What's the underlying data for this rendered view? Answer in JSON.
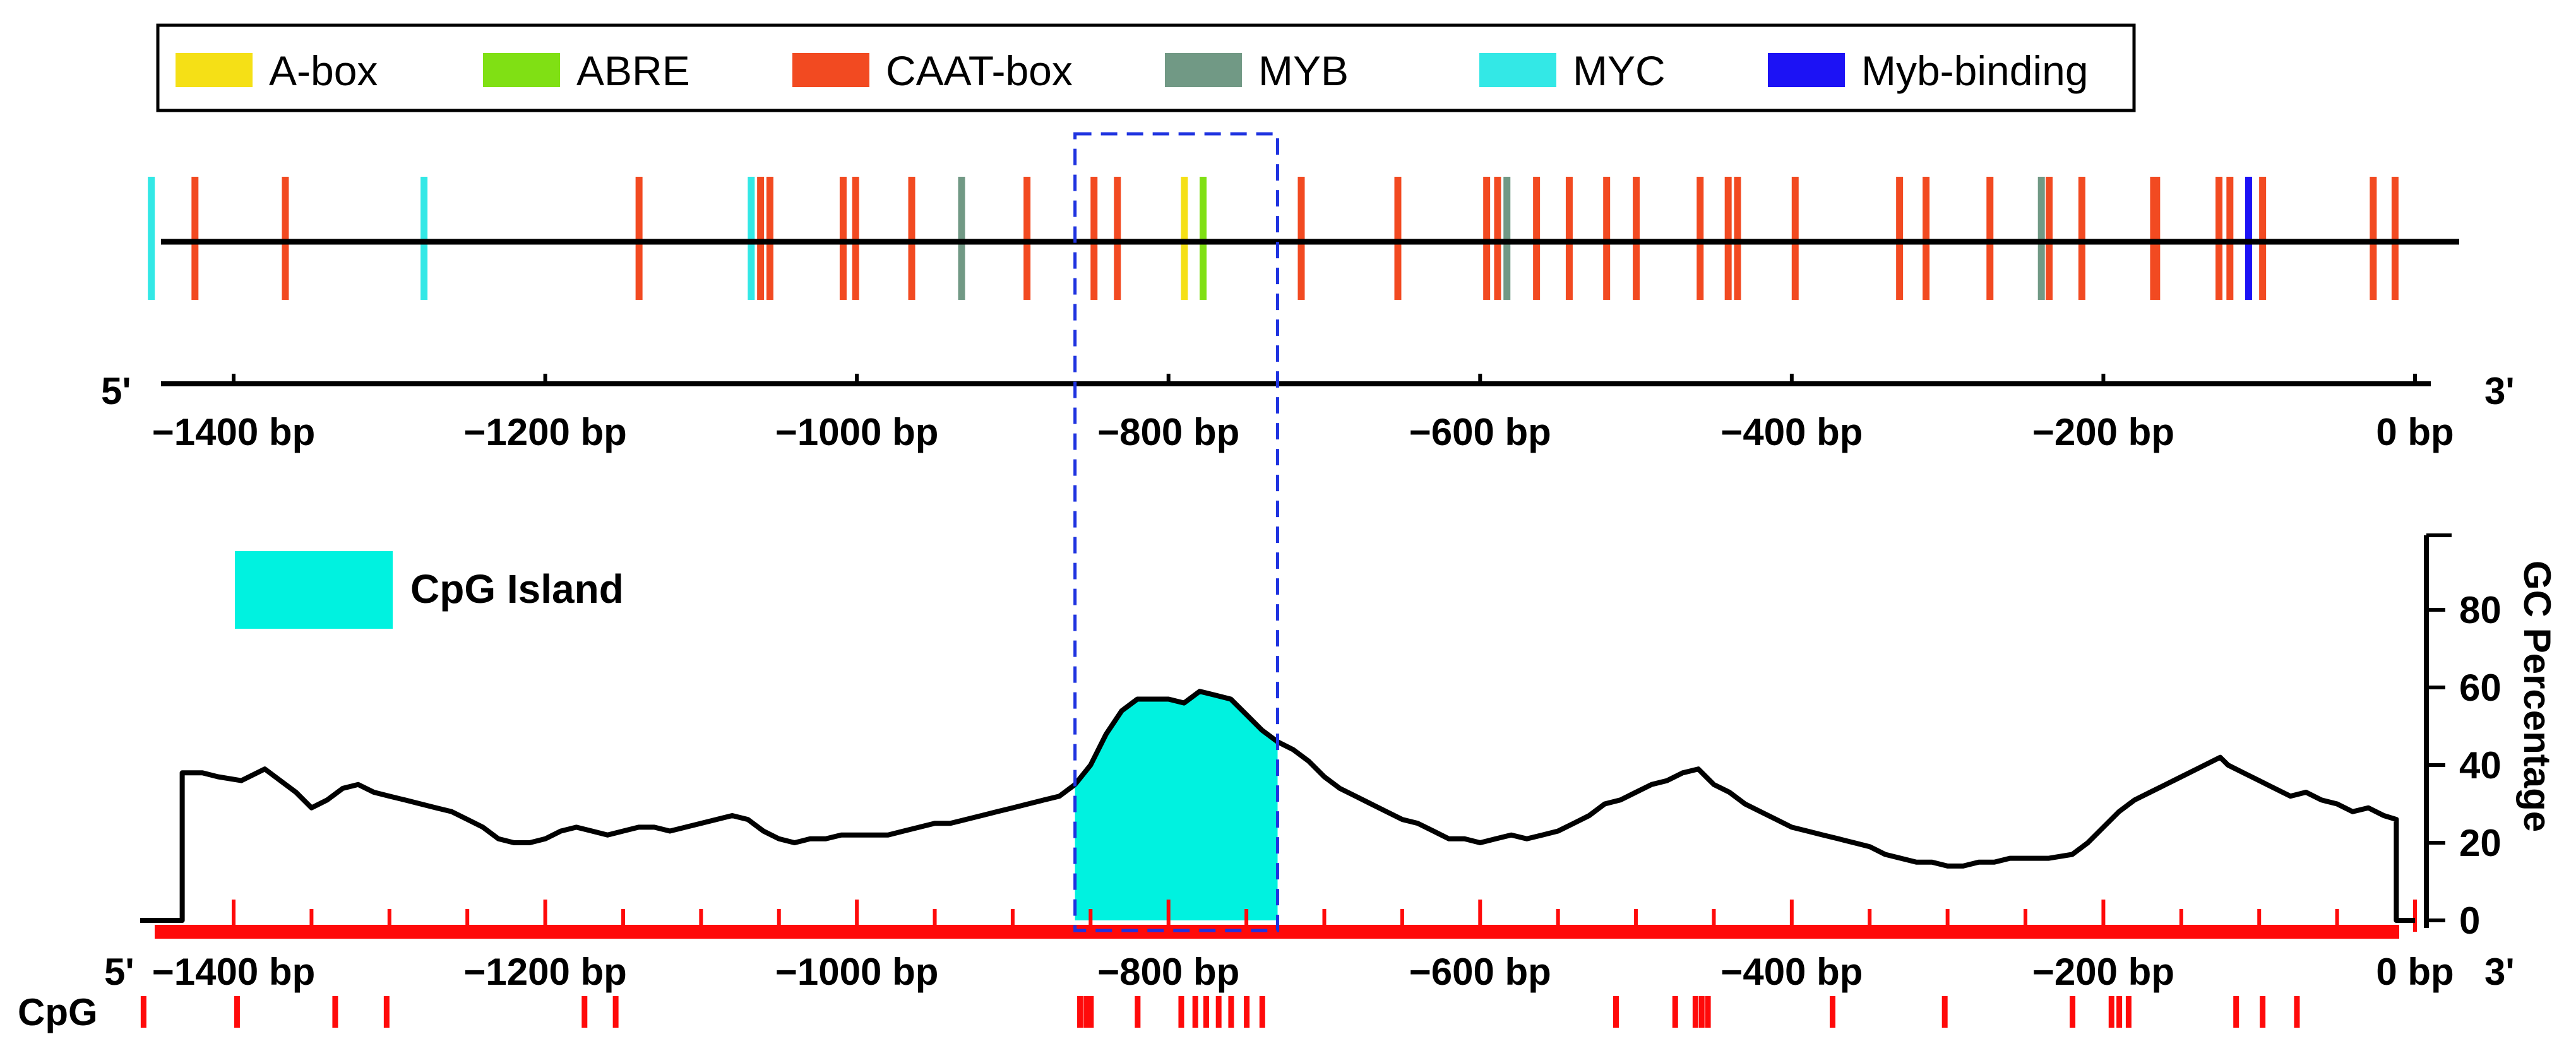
{
  "chart_data": [
    {
      "type": "motif-map",
      "title": "",
      "legend": [
        {
          "key": "A-box",
          "label": "A-box",
          "color": "#f5e016"
        },
        {
          "key": "ABRE",
          "label": "ABRE",
          "color": "#80e014"
        },
        {
          "key": "CAAT-box",
          "label": "CAAT-box",
          "color": "#f24a21"
        },
        {
          "key": "MYB",
          "label": "MYB",
          "color": "#719985"
        },
        {
          "key": "MYC",
          "label": "MYC",
          "color": "#33e8e6"
        },
        {
          "key": "Myb-binding",
          "label": "Myb-binding",
          "color": "#1c12f5"
        }
      ],
      "x_range": [
        -1460,
        0
      ],
      "xlabel": "",
      "ticks": [
        -1400,
        -1200,
        -1000,
        -800,
        -600,
        -400,
        -200,
        0
      ],
      "tick_labels": [
        "−1400 bp",
        "−1200 bp",
        "−1000 bp",
        "−800 bp",
        "−600 bp",
        "−400 bp",
        "−200 bp",
        "0 bp"
      ],
      "label_5prime": "5'",
      "label_3prime": "3'",
      "motifs": [
        {
          "type": "MYC",
          "pos": -1453
        },
        {
          "type": "CAAT-box",
          "pos": -1425
        },
        {
          "type": "CAAT-box",
          "pos": -1367
        },
        {
          "type": "MYC",
          "pos": -1278
        },
        {
          "type": "CAAT-box",
          "pos": -1140
        },
        {
          "type": "MYC",
          "pos": -1068
        },
        {
          "type": "CAAT-box",
          "pos": -1062
        },
        {
          "type": "CAAT-box",
          "pos": -1056
        },
        {
          "type": "CAAT-box",
          "pos": -1009
        },
        {
          "type": "CAAT-box",
          "pos": -1001
        },
        {
          "type": "CAAT-box",
          "pos": -965
        },
        {
          "type": "MYB",
          "pos": -933
        },
        {
          "type": "CAAT-box",
          "pos": -891
        },
        {
          "type": "CAAT-box",
          "pos": -848
        },
        {
          "type": "CAAT-box",
          "pos": -833
        },
        {
          "type": "A-box",
          "pos": -790
        },
        {
          "type": "ABRE",
          "pos": -778
        },
        {
          "type": "CAAT-box",
          "pos": -715
        },
        {
          "type": "CAAT-box",
          "pos": -653
        },
        {
          "type": "CAAT-box",
          "pos": -596
        },
        {
          "type": "CAAT-box",
          "pos": -589
        },
        {
          "type": "MYB",
          "pos": -583
        },
        {
          "type": "CAAT-box",
          "pos": -564
        },
        {
          "type": "CAAT-box",
          "pos": -543
        },
        {
          "type": "CAAT-box",
          "pos": -519
        },
        {
          "type": "CAAT-box",
          "pos": -500
        },
        {
          "type": "CAAT-box",
          "pos": -459
        },
        {
          "type": "CAAT-box",
          "pos": -441
        },
        {
          "type": "CAAT-box",
          "pos": -435
        },
        {
          "type": "CAAT-box",
          "pos": -398
        },
        {
          "type": "CAAT-box",
          "pos": -331
        },
        {
          "type": "CAAT-box",
          "pos": -314
        },
        {
          "type": "CAAT-box",
          "pos": -273
        },
        {
          "type": "MYB",
          "pos": -240
        },
        {
          "type": "CAAT-box",
          "pos": -235
        },
        {
          "type": "CAAT-box",
          "pos": -214
        },
        {
          "type": "CAAT-box",
          "pos": -168
        },
        {
          "type": "CAAT-box",
          "pos": -166
        },
        {
          "type": "CAAT-box",
          "pos": -126
        },
        {
          "type": "CAAT-box",
          "pos": -119
        },
        {
          "type": "Myb-binding",
          "pos": -107
        },
        {
          "type": "CAAT-box",
          "pos": -98
        },
        {
          "type": "CAAT-box",
          "pos": -27
        },
        {
          "type": "CAAT-box",
          "pos": -13
        }
      ]
    },
    {
      "type": "line",
      "title": "",
      "series_name": "GC Percentage",
      "ylabel": "GC Percentage",
      "ylim": [
        0,
        100
      ],
      "yticks": [
        0,
        20,
        40,
        60,
        80
      ],
      "xlim": [
        -1460,
        0
      ],
      "ticks": [
        -1400,
        -1200,
        -1000,
        -800,
        -600,
        -400,
        -200,
        0
      ],
      "tick_labels": [
        "−1400 bp",
        "−1200 bp",
        "−1000 bp",
        "−800 bp",
        "−600 bp",
        "−400 bp",
        "−200 bp",
        "0 bp"
      ],
      "label_5prime": "5'",
      "label_3prime": "3'",
      "x": [
        -1460,
        -1433,
        -1433,
        -1420,
        -1410,
        -1395,
        -1380,
        -1370,
        -1360,
        -1350,
        -1340,
        -1330,
        -1320,
        -1310,
        -1300,
        -1290,
        -1280,
        -1270,
        -1260,
        -1250,
        -1240,
        -1230,
        -1220,
        -1210,
        -1200,
        -1190,
        -1180,
        -1170,
        -1160,
        -1150,
        -1140,
        -1130,
        -1120,
        -1110,
        -1100,
        -1090,
        -1080,
        -1070,
        -1060,
        -1050,
        -1040,
        -1030,
        -1020,
        -1010,
        -1000,
        -990,
        -980,
        -970,
        -960,
        -950,
        -940,
        -930,
        -920,
        -910,
        -900,
        -890,
        -880,
        -870,
        -860,
        -850,
        -840,
        -830,
        -820,
        -810,
        -800,
        -790,
        -780,
        -770,
        -760,
        -750,
        -740,
        -730,
        -720,
        -710,
        -700,
        -690,
        -680,
        -670,
        -660,
        -650,
        -640,
        -630,
        -620,
        -610,
        -600,
        -590,
        -580,
        -570,
        -560,
        -550,
        -540,
        -530,
        -520,
        -510,
        -500,
        -490,
        -480,
        -470,
        -460,
        -455,
        -450,
        -440,
        -430,
        -420,
        -410,
        -400,
        -390,
        -380,
        -370,
        -360,
        -350,
        -340,
        -330,
        -320,
        -310,
        -300,
        -290,
        -280,
        -270,
        -260,
        -250,
        -240,
        -235,
        -220,
        -210,
        -200,
        -190,
        -180,
        -170,
        -160,
        -150,
        -140,
        -130,
        -125,
        -120,
        -110,
        -100,
        -95,
        -90,
        -80,
        -70,
        -60,
        -50,
        -40,
        -30,
        -20,
        -12,
        -12,
        0
      ],
      "values": [
        0,
        0,
        38,
        38,
        37,
        36,
        39,
        36,
        33,
        29,
        31,
        34,
        35,
        33,
        32,
        31,
        30,
        29,
        28,
        26,
        24,
        21,
        20,
        20,
        21,
        23,
        24,
        23,
        22,
        23,
        24,
        24,
        23,
        24,
        25,
        26,
        27,
        26,
        23,
        21,
        20,
        21,
        21,
        22,
        22,
        22,
        22,
        23,
        24,
        25,
        25,
        26,
        27,
        28,
        29,
        30,
        31,
        32,
        35,
        40,
        48,
        54,
        57,
        57,
        57,
        56,
        59,
        58,
        57,
        53,
        49,
        46,
        44,
        41,
        37,
        34,
        32,
        30,
        28,
        26,
        25,
        23,
        21,
        21,
        20,
        21,
        22,
        21,
        22,
        23,
        25,
        27,
        30,
        31,
        33,
        35,
        36,
        38,
        39,
        37,
        35,
        33,
        30,
        28,
        26,
        24,
        23,
        22,
        21,
        20,
        19,
        17,
        16,
        15,
        15,
        14,
        14,
        15,
        15,
        16,
        16,
        16,
        16,
        17,
        20,
        24,
        28,
        31,
        33,
        35,
        37,
        39,
        41,
        42,
        40,
        38,
        36,
        35,
        34,
        32,
        33,
        31,
        30,
        28,
        29,
        27,
        26,
        0,
        0
      ],
      "cpg_island": {
        "label": "CpG Island",
        "start": -860,
        "end": -730,
        "color": "#00f2e0"
      },
      "highlight_region": {
        "start": -860,
        "end": -730,
        "style": "dashed",
        "color": "#1f33e0"
      },
      "cpg_track_label": "CpG",
      "cpg_positions": [
        -1458,
        -1398,
        -1335,
        -1302,
        -1175,
        -1155,
        -857,
        -853,
        -850,
        -820,
        -792,
        -783,
        -776,
        -768,
        -760,
        -750,
        -740,
        -513,
        -475,
        -462,
        -458,
        -454,
        -374,
        -302,
        -220,
        -195,
        -190,
        -184,
        -115,
        -98,
        -76
      ]
    }
  ]
}
